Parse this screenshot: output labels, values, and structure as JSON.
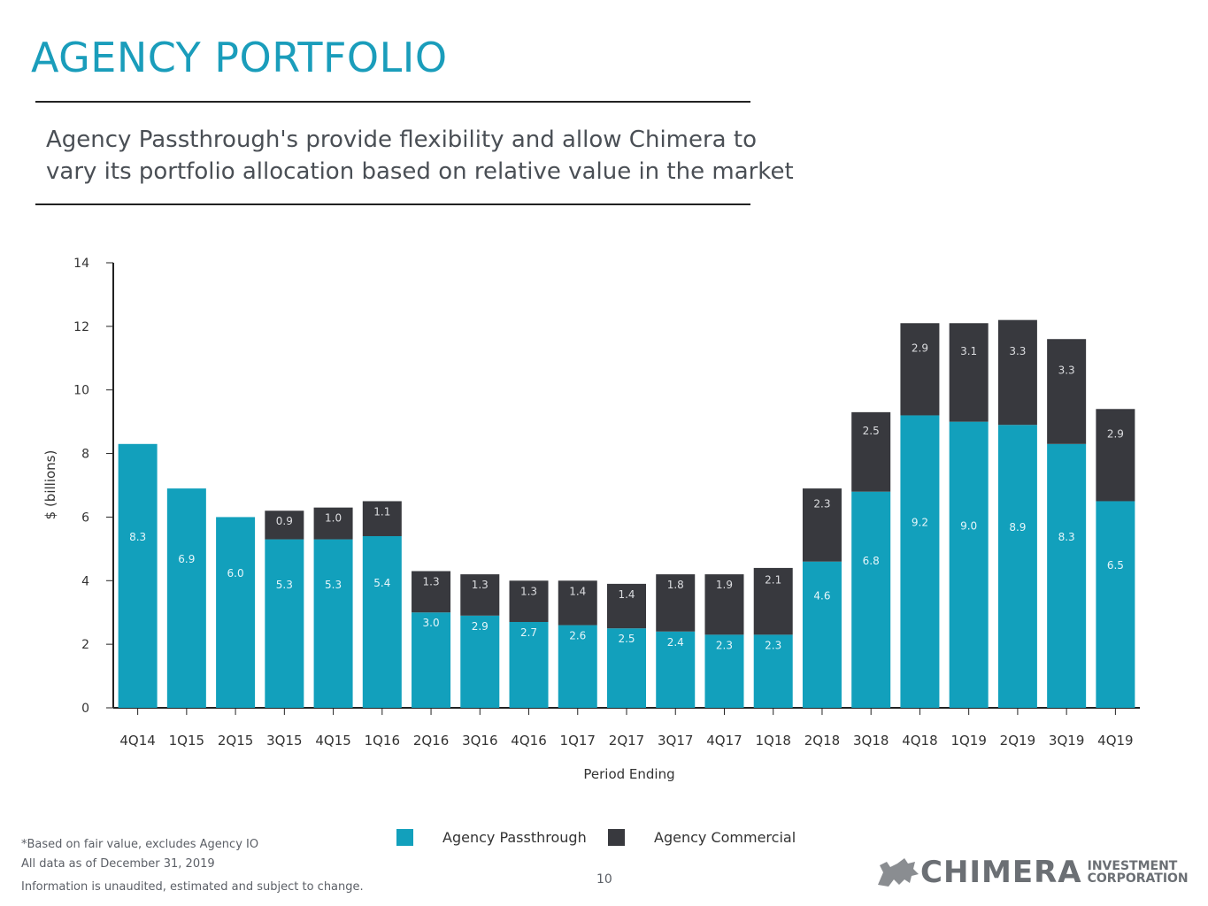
{
  "header": {
    "title": "AGENCY PORTFOLIO",
    "subtitle_line1": "Agency Passthrough's provide flexibility and allow Chimera to",
    "subtitle_line2": "vary its portfolio allocation based on relative value in the market"
  },
  "colors": {
    "title": "#1a9dbb",
    "passthrough": "#12a0bc",
    "commercial": "#38393e"
  },
  "chart_data": {
    "type": "bar",
    "stacked": true,
    "title": "",
    "xlabel": "Period Ending",
    "ylabel": "$ (billions)",
    "ylim": [
      0,
      14
    ],
    "yticks": [
      "0",
      "2",
      "4",
      "6",
      "8",
      "10",
      "12",
      "14"
    ],
    "categories": [
      "4Q14",
      "1Q15",
      "2Q15",
      "3Q15",
      "4Q15",
      "1Q16",
      "2Q16",
      "3Q16",
      "4Q16",
      "1Q17",
      "2Q17",
      "3Q17",
      "4Q17",
      "1Q18",
      "2Q18",
      "3Q18",
      "4Q18",
      "1Q19",
      "2Q19",
      "3Q19",
      "4Q19"
    ],
    "series": [
      {
        "name": "Agency Passthrough",
        "values": [
          8.3,
          6.9,
          6.0,
          5.3,
          5.3,
          5.4,
          3.0,
          2.9,
          2.7,
          2.6,
          2.5,
          2.4,
          2.3,
          2.3,
          4.6,
          6.8,
          9.2,
          9.0,
          8.9,
          8.3,
          6.5
        ],
        "labels": [
          "8.3",
          "6.9",
          "6.0",
          "5.3",
          "5.3",
          "5.4",
          "3.0",
          "2.9",
          "2.7",
          "2.6",
          "2.5",
          "2.4",
          "2.3",
          "2.3",
          "4.6",
          "6.8",
          "9.2",
          "9.0",
          "8.9",
          "8.3",
          "6.5"
        ]
      },
      {
        "name": "Agency Commercial",
        "values": [
          0,
          0,
          0,
          0.9,
          1.0,
          1.1,
          1.3,
          1.3,
          1.3,
          1.4,
          1.4,
          1.8,
          1.9,
          2.1,
          2.3,
          2.5,
          2.9,
          3.1,
          3.3,
          3.3,
          2.9
        ],
        "labels": [
          "",
          "",
          "",
          "0.9",
          "1.0",
          "1.1",
          "1.3",
          "1.3",
          "1.3",
          "1.4",
          "1.4",
          "1.8",
          "1.9",
          "2.1",
          "2.3",
          "2.5",
          "2.9",
          "3.1",
          "3.3",
          "3.3",
          "2.9"
        ]
      }
    ],
    "legend": [
      "Agency Passthrough",
      "Agency Commercial"
    ],
    "legend_position": "bottom"
  },
  "footer": {
    "note1": "*Based on fair value, excludes Agency IO",
    "note2": "All data as of December 31, 2019",
    "note3": "Information is unaudited, estimated and subject to change.",
    "page_number": "10",
    "logo_main": "CHIMERA",
    "logo_sub1": "INVESTMENT",
    "logo_sub2": "CORPORATION"
  }
}
